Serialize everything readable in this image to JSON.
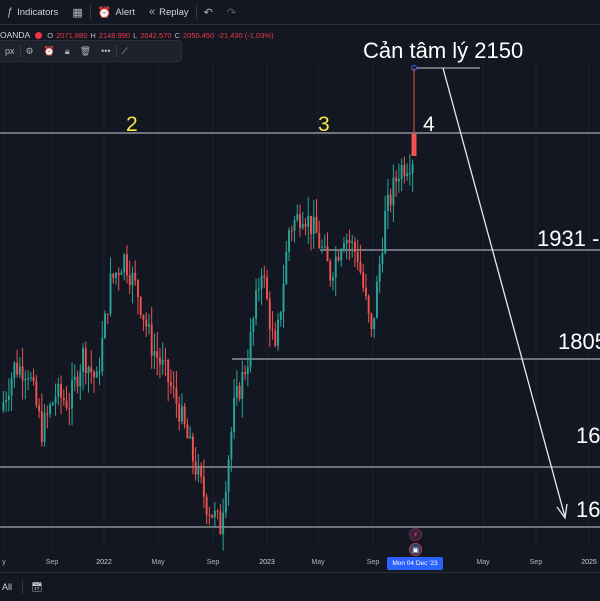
{
  "toolbar": {
    "indicators_label": "Indicators",
    "alert_label": "Alert",
    "replay_label": "Replay"
  },
  "legend": {
    "symbol_fragment": "OANDA",
    "open_label": "O",
    "open_value": "2071.880",
    "high_label": "H",
    "high_value": "2148.990",
    "low_label": "L",
    "low_value": "2042.570",
    "close_label": "C",
    "close_value": "2050.450",
    "change_value": "-21.430 (-1.03%)",
    "unit_fragment": "px"
  },
  "annotations": {
    "peak2": "2",
    "peak3": "3",
    "peak4": "4",
    "resistance": "Cản tâm lý 2150",
    "level_1931": "1931 -",
    "level_1805": "1805",
    "level_16_a": "16",
    "level_16_b": "16"
  },
  "x_axis": {
    "ticks": [
      "y",
      "Sep",
      "2022",
      "May",
      "Sep",
      "2023",
      "May",
      "Sep",
      "May",
      "Sep",
      "2025"
    ],
    "crosshair_date": "Mon 04 Dec '23"
  },
  "bottom": {
    "range_label": "All"
  },
  "colors": {
    "background": "#131722",
    "up": "#26a69a",
    "down": "#ef5350",
    "accent": "#2962ff",
    "label_yellow": "#f5e642"
  },
  "chart_data": {
    "type": "candlestick",
    "x": [
      "2021-06",
      "2021-07",
      "2021-08",
      "2021-09",
      "2021-10",
      "2021-11",
      "2021-12",
      "2022-01",
      "2022-02",
      "2022-03",
      "2022-04",
      "2022-05",
      "2022-06",
      "2022-07",
      "2022-08",
      "2022-09",
      "2022-10",
      "2022-11",
      "2022-12",
      "2023-01",
      "2023-02",
      "2023-03",
      "2023-04",
      "2023-05",
      "2023-06",
      "2023-07",
      "2023-08",
      "2023-09",
      "2023-10",
      "2023-11",
      "2023-12"
    ],
    "close": [
      1765,
      1814,
      1811,
      1742,
      1783,
      1774,
      1828,
      1797,
      1909,
      1937,
      1897,
      1838,
      1807,
      1766,
      1711,
      1660,
      1634,
      1768,
      1824,
      1928,
      1827,
      1969,
      1990,
      1963,
      1919,
      1965,
      1940,
      1849,
      1984,
      2036,
      2050
    ],
    "horizontal_levels": [
      2150,
      2075,
      1931,
      1805,
      1680,
      1620
    ],
    "labeled_peaks": [
      "2",
      "3",
      "4"
    ],
    "ylim": [
      1610,
      2160
    ]
  }
}
